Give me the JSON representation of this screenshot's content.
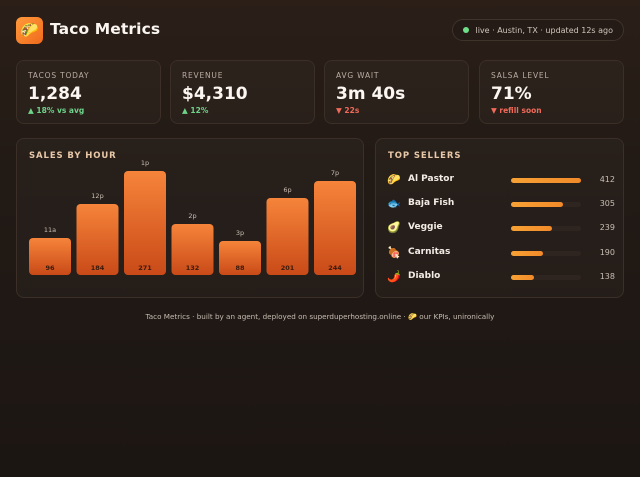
{
  "header": {
    "logo_glyph": "🌮",
    "title": "Taco Metrics",
    "status": "live · Austin, TX · updated 12s ago"
  },
  "kpis": [
    {
      "label": "TACOS TODAY",
      "value": "1,284",
      "delta": "▲ 18% vs avg",
      "trend": "up"
    },
    {
      "label": "REVENUE",
      "value": "$4,310",
      "delta": "▲ 12%",
      "trend": "up"
    },
    {
      "label": "AVG WAIT",
      "value": "3m 40s",
      "delta": "▼ 22s",
      "trend": "down"
    },
    {
      "label": "SALSA LEVEL",
      "value": "71%",
      "delta": "▼ refill soon",
      "trend": "down"
    }
  ],
  "sales": {
    "title": "SALES BY HOUR"
  },
  "chart_data": {
    "type": "bar",
    "title": "SALES BY HOUR",
    "categories": [
      "11a",
      "12p",
      "1p",
      "2p",
      "3p",
      "6p",
      "7p"
    ],
    "values": [
      96,
      184,
      271,
      132,
      88,
      201,
      244
    ],
    "ylim": [
      0,
      271
    ],
    "grid": false,
    "legend": "none"
  },
  "sellers": {
    "title": "TOP SELLERS",
    "items": [
      {
        "icon": "taco-icon",
        "glyph": "🌮",
        "name": "Al Pastor",
        "count": "412",
        "share": 1.0
      },
      {
        "icon": "fish-icon",
        "glyph": "🐟",
        "name": "Baja Fish",
        "count": "305",
        "share": 0.74
      },
      {
        "icon": "avocado-icon",
        "glyph": "🥑",
        "name": "Veggie",
        "count": "239",
        "share": 0.58
      },
      {
        "icon": "meat-icon",
        "glyph": "🍖",
        "name": "Carnitas",
        "count": "190",
        "share": 0.46
      },
      {
        "icon": "chili-icon",
        "glyph": "🌶️",
        "name": "Diablo",
        "count": "138",
        "share": 0.33
      }
    ]
  },
  "footer": {
    "text": "Taco Metrics · built by an agent, deployed on superduperhosting.online · 🌮 our KPIs, unironically"
  },
  "colors": {
    "accent": "#f27a2a",
    "up": "#6fd38a",
    "down": "#f06a5a",
    "live": "#6ee08a"
  }
}
